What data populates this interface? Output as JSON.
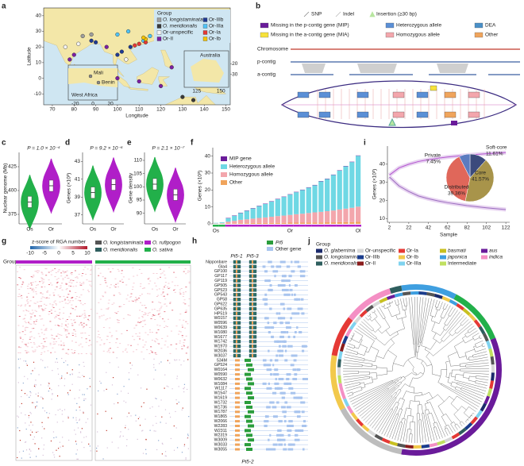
{
  "panel_labels": [
    "a",
    "b",
    "c",
    "d",
    "e",
    "f",
    "g",
    "h",
    "i",
    "j"
  ],
  "chart_data": [
    {
      "type": "map",
      "xlabel": "Longitude",
      "ylabel": "Latitude",
      "legend_title": "Group",
      "xlim": [
        66,
        152
      ],
      "ylim": [
        -17,
        45
      ],
      "xticks": [
        70,
        80,
        90,
        100,
        110,
        120,
        130,
        140,
        150
      ],
      "yticks": [
        -10,
        0,
        10,
        20,
        30,
        40
      ],
      "series": [
        {
          "name": "O. longistaminata",
          "color": "#9e9e9e",
          "x": [
            84,
            88
          ],
          "y": [
            27,
            28
          ]
        },
        {
          "name": "O. meridionalis",
          "color": "#3a3a3a",
          "x": [
            135,
            130
          ],
          "y": [
            -14,
            -12
          ]
        },
        {
          "name": "Or-unspecific",
          "color": "#f4f4f4",
          "x": [
            76,
            82,
            104
          ],
          "y": [
            20,
            22,
            12
          ]
        },
        {
          "name": "Or-II",
          "color": "#7b1fa2",
          "x": [
            78,
            80,
            95,
            110,
            125,
            100,
            120
          ],
          "y": [
            12,
            15,
            20,
            -2,
            7,
            0,
            -5
          ]
        },
        {
          "name": "Or-IIIb",
          "color": "#1f3a93",
          "x": [
            88,
            90,
            100,
            102,
            106
          ],
          "y": [
            24,
            23,
            15,
            17,
            20
          ]
        },
        {
          "name": "Or-IIIa",
          "color": "#4fc3f7",
          "x": [
            100,
            105,
            112,
            115
          ],
          "y": [
            28,
            30,
            24,
            27
          ]
        },
        {
          "name": "Or-Ia",
          "color": "#e53935",
          "x": [
            110,
            113,
            108
          ],
          "y": [
            22,
            23,
            21
          ]
        },
        {
          "name": "Or-Ib",
          "color": "#f5c400",
          "x": [
            113,
            112
          ],
          "y": [
            25,
            26
          ]
        }
      ],
      "insets": [
        {
          "labels": [
            "Mali",
            "Benin",
            "West Africa"
          ],
          "xlim": [
            -28,
            28
          ],
          "xticks": [
            -20,
            0,
            20
          ]
        },
        {
          "labels": [
            "Australia"
          ],
          "xlim": [
            112,
            158
          ],
          "ylim": [
            -42,
            -8
          ],
          "xticks": [
            125,
            150
          ],
          "yticks": [
            -20,
            -30
          ]
        }
      ]
    },
    {
      "type": "violin",
      "ylabel": "Nuclear genome (Mb)",
      "annotation": "P = 1.0 × 10⁻⁴",
      "categories": [
        "Os",
        "Or"
      ],
      "values": [
        388,
        405
      ],
      "colors": [
        "#22b04a",
        "#b01ec8"
      ],
      "ylim": [
        365,
        440
      ],
      "yticks": [
        375,
        400,
        425
      ]
    },
    {
      "type": "violin",
      "ylabel": "Genes (×10³)",
      "annotation": "P = 9.2 × 10⁻⁶",
      "categories": [
        "Os",
        "Or"
      ],
      "values": [
        39.5,
        40.4
      ],
      "colors": [
        "#22b04a",
        "#b01ec8"
      ],
      "ylim": [
        36,
        44
      ],
      "yticks": [
        37,
        39,
        41,
        43
      ]
    },
    {
      "type": "violin",
      "ylabel": "Gene density",
      "annotation": "P = 2.1 × 10⁻⁷",
      "categories": [
        "Os",
        "Or"
      ],
      "values": [
        101,
        97
      ],
      "colors": [
        "#22b04a",
        "#b01ec8"
      ],
      "ylim": [
        86,
        113
      ],
      "yticks": [
        90,
        95,
        100,
        105,
        110
      ]
    },
    {
      "type": "bar",
      "stacked": true,
      "ylabel": "Genes (×10³)",
      "ylim": [
        0,
        45
      ],
      "yticks": [
        0,
        10,
        20,
        30,
        40
      ],
      "categories": [
        "Os",
        null,
        null,
        null,
        null,
        null,
        null,
        null,
        null,
        null,
        null,
        null,
        "Or",
        null,
        null,
        null,
        null,
        null,
        null,
        null,
        null,
        null,
        null,
        "Ol"
      ],
      "series": [
        {
          "name": "MIP gene",
          "color": "#6a1b9a",
          "values": [
            0,
            0,
            0.2,
            0.2,
            0.2,
            0.2,
            0.2,
            0.2,
            0.2,
            0.2,
            0.2,
            0.2,
            0.2,
            0.2,
            0.2,
            0.2,
            0.2,
            0.2,
            0.2,
            0.2,
            0.2,
            0.2,
            0.2,
            0.2
          ]
        },
        {
          "name": "Heterozygous allele",
          "color": "#6fd8e4",
          "values": [
            0.3,
            0.5,
            2,
            3,
            4,
            5,
            6,
            7,
            8,
            9,
            10,
            11,
            12,
            13,
            14,
            15,
            16,
            18,
            19,
            21,
            23,
            25,
            27,
            30
          ]
        },
        {
          "name": "Homozygous allele",
          "color": "#f3a6ac",
          "values": [
            0.2,
            0.3,
            1,
            1.5,
            2,
            2.3,
            2.6,
            3,
            3.3,
            3.6,
            4,
            4.3,
            4.6,
            5,
            5.3,
            5.6,
            6,
            6.3,
            6.6,
            7,
            7.5,
            8,
            8.5,
            9
          ]
        },
        {
          "name": "Other",
          "color": "#f0a45c",
          "values": [
            0.1,
            0.1,
            0.3,
            0.3,
            0.4,
            0.4,
            0.5,
            0.5,
            0.5,
            0.6,
            0.6,
            0.6,
            0.7,
            0.7,
            0.7,
            0.8,
            0.8,
            0.8,
            0.9,
            0.9,
            1,
            1,
            1,
            1.2
          ]
        }
      ]
    },
    {
      "type": "line",
      "xlabel": "Sample",
      "ylabel": "Genes (×10³)",
      "xlim": [
        0,
        126
      ],
      "ylim": [
        8,
        50
      ],
      "xticks": [
        2,
        22,
        42,
        62,
        82,
        102,
        122
      ],
      "yticks": [
        10,
        20,
        30,
        40
      ],
      "x": [
        2,
        12,
        22,
        32,
        42,
        52,
        62,
        72,
        82,
        92,
        102,
        112,
        122
      ],
      "series": [
        {
          "color": "#b455d0",
          "values": [
            34,
            38,
            40,
            41.5,
            42.5,
            43.3,
            44,
            44.5,
            45,
            45.4,
            45.8,
            46.1,
            46.4
          ]
        },
        {
          "color": "#9c6fc0",
          "values": [
            33,
            28,
            25,
            22.5,
            21,
            19.8,
            18.8,
            18,
            17.2,
            16.6,
            16,
            15.5,
            15
          ]
        }
      ]
    },
    {
      "type": "pie",
      "categories": [
        "Soft-core",
        "Core",
        "Distributed",
        "Private"
      ],
      "values": [
        11.61,
        41.57,
        39.36,
        7.45
      ],
      "value_labels": [
        "11.61%",
        "41.57%",
        "39.36%",
        "7.45%"
      ],
      "colors": [
        "#3b4a7c",
        "#a8944a",
        "#e0675a",
        "#5b7bc0"
      ]
    }
  ],
  "schematic": {
    "legend": [
      "SNP",
      "Indel",
      "Insertion (≥30 bp)",
      "Missing in the p-contig gene (MIP)",
      "Heterozygous allele",
      "DEA",
      "Missing in the a-contig gene (MIA)",
      "Homozygous allele",
      "Other"
    ],
    "legend_colors": [
      "#888888",
      "#bbbbbb",
      "#b8e6a0",
      "#6a1b9a",
      "#5b8fd6",
      "#4a90c8",
      "#f7e23a",
      "#f3a6ac",
      "#f0a45c"
    ],
    "tracks": [
      "Chromosome",
      "p-contig",
      "a-contig"
    ]
  },
  "heatmap": {
    "legend_title": "z-score of RGA number",
    "colorbar_ticks": [
      -10,
      -5,
      0,
      5,
      10
    ],
    "row_label": "Group",
    "groups": [
      {
        "name": "O. longistaminata",
        "color": "#555555"
      },
      {
        "name": "O. rufipogon",
        "color": "#b01ec8"
      },
      {
        "name": "O. meridionalis",
        "color": "#2e5e5e"
      },
      {
        "name": "O. sativa",
        "color": "#22b04a"
      }
    ]
  },
  "genes": {
    "legend": [
      {
        "name": "Pi5",
        "color": "#2a9d3c"
      },
      {
        "name": "Other gene",
        "color": "#a8c4ee"
      }
    ],
    "gene_labels": [
      "Pi5-1",
      "Pi5-3",
      "Pi5-2"
    ],
    "rows": [
      "Nipponbare",
      "Gla4",
      "GP100",
      "GP117",
      "GP119",
      "GP505",
      "GP523",
      "GP543",
      "GP58",
      "GP622",
      "GP635",
      "HP519",
      "W0157",
      "W0596",
      "W0639",
      "W1080",
      "W1677",
      "W1742",
      "W1970",
      "W2036",
      "W3037",
      "534M",
      "GP524",
      "W0164",
      "W0590",
      "W0632",
      "W1084",
      "W1117",
      "W1547",
      "W1619",
      "W1732",
      "W1736",
      "W1787",
      "W1865",
      "W2066",
      "W2283",
      "W2311",
      "W2319",
      "W3009",
      "W3033",
      "W3055"
    ]
  },
  "tree": {
    "legend_title": "Group",
    "legend": [
      {
        "name": "O. glaberrima",
        "color": "#1b2a6b"
      },
      {
        "name": "O. longistaminata",
        "color": "#555555"
      },
      {
        "name": "O. meridionalis",
        "color": "#2e5e5e"
      },
      {
        "name": "Or-unspecific",
        "color": "#d8d8d8"
      },
      {
        "name": "Or-IIIb",
        "color": "#1a3c8c"
      },
      {
        "name": "Or-II",
        "color": "#8a1c1c"
      },
      {
        "name": "Or-Ia",
        "color": "#e53935"
      },
      {
        "name": "Or-Ib",
        "color": "#f2c94c"
      },
      {
        "name": "Or-IIIa",
        "color": "#7fd3ef"
      },
      {
        "name": "basmati",
        "color": "#c8c020"
      },
      {
        "name": "japonica",
        "color": "#3f9fe0"
      },
      {
        "name": "Intermediate",
        "color": "#c0e060"
      },
      {
        "name": "aus",
        "color": "#6a1b9a"
      },
      {
        "name": "indica",
        "color": "#f48fc4"
      }
    ]
  }
}
